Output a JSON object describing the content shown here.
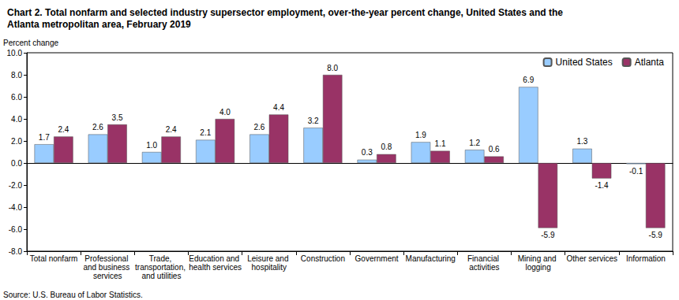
{
  "chart_data": {
    "type": "bar",
    "title": "Chart 2. Total nonfarm and selected industry supersector employment, over-the-year percent change, United States and the Atlanta metropolitan area, February 2019",
    "y_label": "Percent change",
    "source": "Source: U.S. Bureau of Labor Statistics.",
    "categories": [
      "Total nonfarm",
      "Professional and business services",
      "Trade, transportation, and utilities",
      "Education and health services",
      "Leisure and hospitality",
      "Construction",
      "Government",
      "Manufacturing",
      "Financial activities",
      "Mining and logging",
      "Other services",
      "Information"
    ],
    "series": [
      {
        "name": "United States",
        "color": "#99ccff",
        "values": [
          1.7,
          2.6,
          1.0,
          2.1,
          2.6,
          3.2,
          0.3,
          1.9,
          1.2,
          6.9,
          1.3,
          -0.1
        ],
        "value_labels": [
          "1.7",
          "2.6",
          "1.0",
          "2.1",
          "2.6",
          "3.2",
          "0.3",
          "1.9",
          "1.2",
          "6.9",
          "1.3",
          "-0.1"
        ]
      },
      {
        "name": "Atlanta",
        "color": "#993366",
        "values": [
          2.4,
          3.5,
          2.4,
          4.0,
          4.4,
          8.0,
          0.8,
          1.1,
          0.6,
          -5.9,
          -1.4,
          -5.9
        ],
        "value_labels": [
          "2.4",
          "3.5",
          "2.4",
          "4.0",
          "4.4",
          "8.0",
          "0.8",
          "1.1",
          "0.6",
          "-5.9",
          "-1.4",
          "-5.9"
        ]
      }
    ],
    "ylim": [
      -8,
      10
    ],
    "yticks": [
      {
        "value": -8,
        "label": "-8.0"
      },
      {
        "value": -6,
        "label": "-6.0"
      },
      {
        "value": -4,
        "label": "-4.0"
      },
      {
        "value": -2,
        "label": "-2.0"
      },
      {
        "value": 0,
        "label": "0.0"
      },
      {
        "value": 2,
        "label": "2.0"
      },
      {
        "value": 4,
        "label": "4.0"
      },
      {
        "value": 6,
        "label": "6.0"
      },
      {
        "value": 8,
        "label": "8.0"
      },
      {
        "value": 10,
        "label": "10.0"
      }
    ],
    "grid": false,
    "legend": "upper right",
    "data_labels": true
  }
}
